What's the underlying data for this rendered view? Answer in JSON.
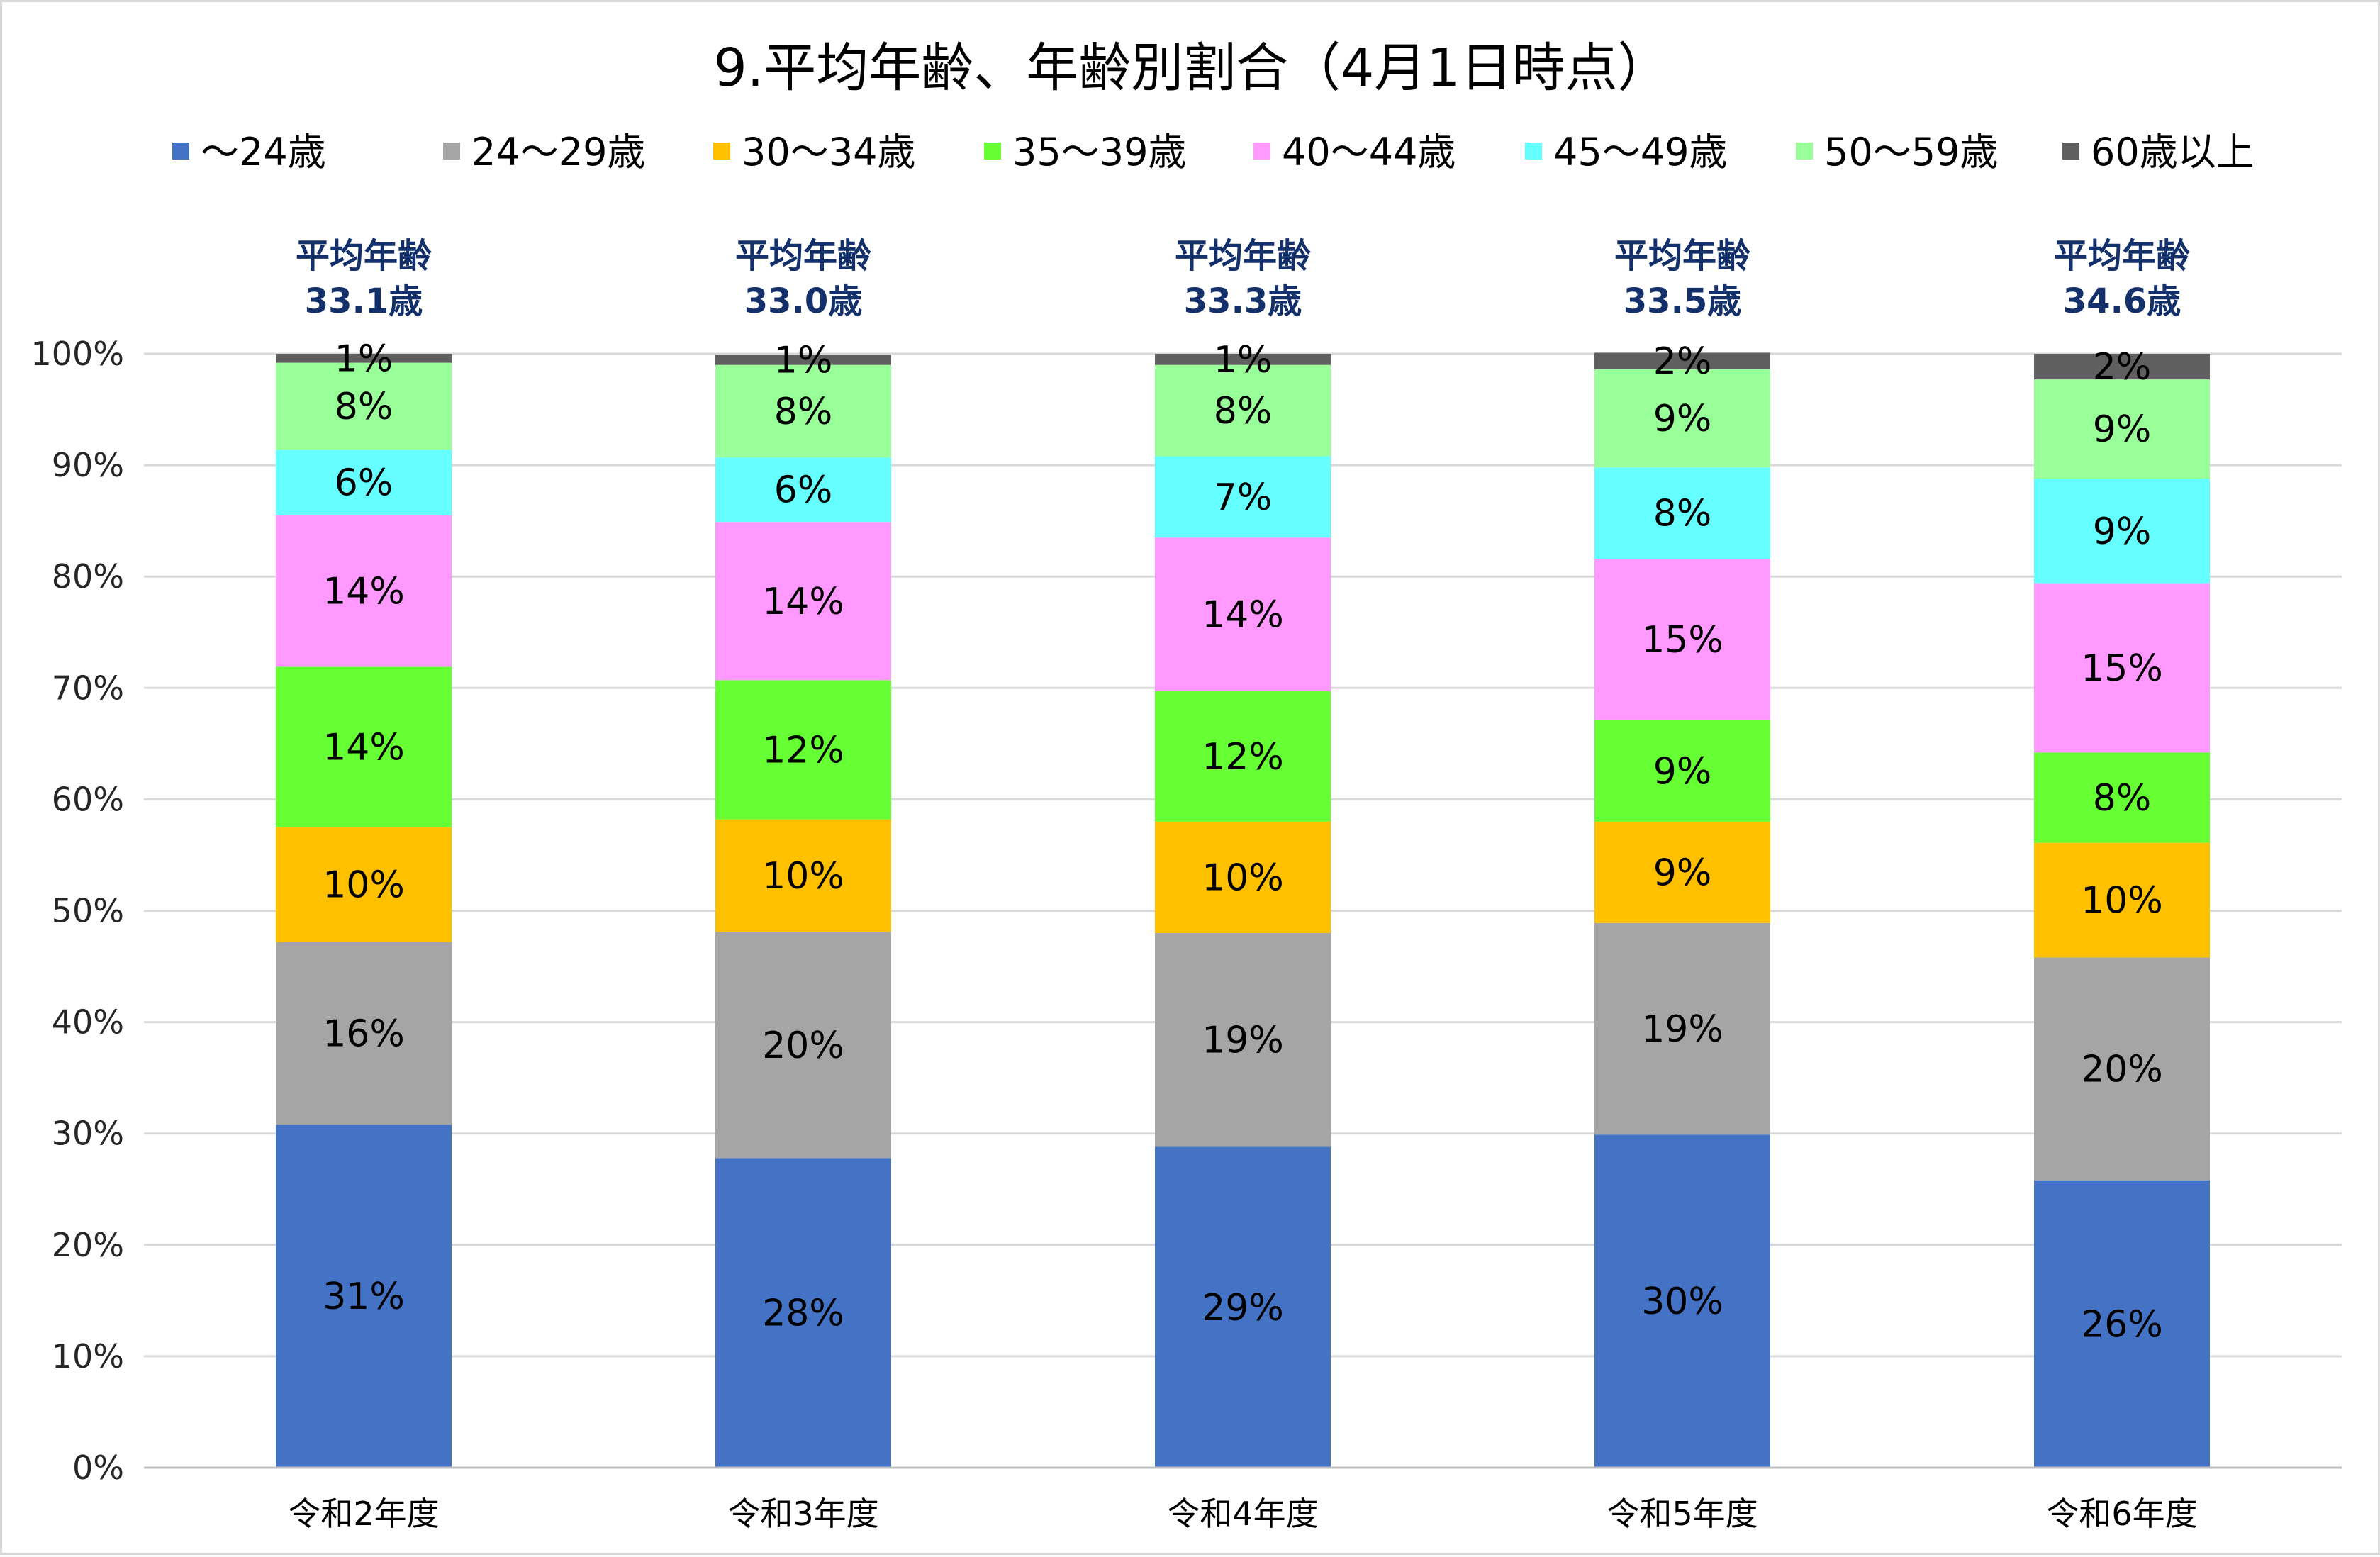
{
  "chart_data": {
    "type": "bar",
    "stacked": true,
    "title": "9.平均年齢、年齢別割合（4月1日時点）",
    "categories": [
      "令和2年度",
      "令和3年度",
      "令和4年度",
      "令和5年度",
      "令和6年度"
    ],
    "ylim": [
      0,
      100
    ],
    "yticks": [
      "0%",
      "10%",
      "20%",
      "30%",
      "40%",
      "50%",
      "60%",
      "70%",
      "80%",
      "90%",
      "100%"
    ],
    "grid": true,
    "legend_position": "top",
    "series": [
      {
        "name": "～24歳",
        "color": "#4472c4",
        "values": [
          30.8,
          27.8,
          28.8,
          29.9,
          25.8
        ],
        "labels": [
          "31%",
          "28%",
          "29%",
          "30%",
          "26%"
        ]
      },
      {
        "name": "24～29歳",
        "color": "#a5a5a5",
        "values": [
          16.4,
          20.3,
          19.2,
          19.0,
          20.0
        ],
        "labels": [
          "16%",
          "20%",
          "19%",
          "19%",
          "20%"
        ]
      },
      {
        "name": "30～34歳",
        "color": "#ffc000",
        "values": [
          10.3,
          10.1,
          10.0,
          9.1,
          10.3
        ],
        "labels": [
          "10%",
          "10%",
          "10%",
          "9%",
          "10%"
        ]
      },
      {
        "name": "35～39歳",
        "color": "#66ff33",
        "values": [
          14.4,
          12.5,
          11.7,
          9.1,
          8.1
        ],
        "labels": [
          "14%",
          "12%",
          "12%",
          "9%",
          "8%"
        ]
      },
      {
        "name": "40～44歳",
        "color": "#ff99ff",
        "values": [
          13.6,
          14.2,
          13.8,
          14.5,
          15.2
        ],
        "labels": [
          "14%",
          "14%",
          "14%",
          "15%",
          "15%"
        ]
      },
      {
        "name": "45～49歳",
        "color": "#66ffff",
        "values": [
          5.9,
          5.8,
          7.3,
          8.2,
          9.4
        ],
        "labels": [
          "6%",
          "6%",
          "7%",
          "8%",
          "9%"
        ]
      },
      {
        "name": "50～59歳",
        "color": "#99ff99",
        "values": [
          7.8,
          8.3,
          8.2,
          8.8,
          8.9
        ],
        "labels": [
          "8%",
          "8%",
          "8%",
          "9%",
          "9%"
        ]
      },
      {
        "name": "60歳以上",
        "color": "#5f5f5f",
        "values": [
          0.8,
          0.9,
          1.0,
          1.5,
          2.3
        ],
        "labels": [
          "1%",
          "1%",
          "1%",
          "2%",
          "2%"
        ]
      }
    ],
    "annotations": [
      {
        "line1": "平均年齢",
        "line2": "33.1歳"
      },
      {
        "line1": "平均年齢",
        "line2": "33.0歳"
      },
      {
        "line1": "平均年齢",
        "line2": "33.3歳"
      },
      {
        "line1": "平均年齢",
        "line2": "33.5歳"
      },
      {
        "line1": "平均年齢",
        "line2": "34.6歳"
      }
    ]
  }
}
